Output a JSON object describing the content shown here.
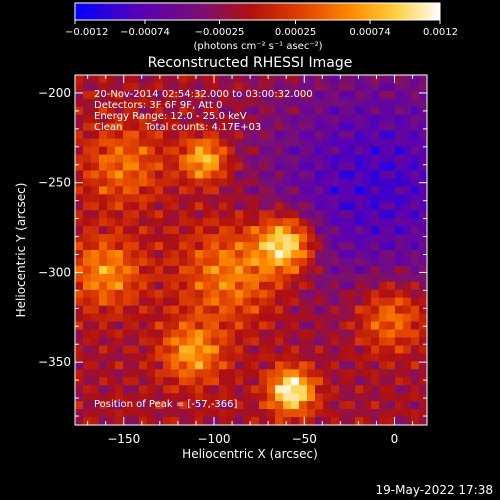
{
  "chart_data": {
    "type": "heatmap",
    "title": "Reconstructed RHESSI Image",
    "xlabel": "Heliocentric X (arcsec)",
    "ylabel": "Heliocentric Y (arcsec)",
    "xlim": [
      -177,
      18
    ],
    "ylim": [
      -385,
      -190
    ],
    "xticks": [
      -150,
      -100,
      -50,
      0
    ],
    "xtick_labels": [
      "−150",
      "−100",
      "−50",
      "0"
    ],
    "yticks": [
      -200,
      -250,
      -300,
      -350
    ],
    "ytick_labels": [
      "−200",
      "−250",
      "−300",
      "−350"
    ],
    "colorbar": {
      "range": [
        -0.0012,
        0.0012
      ],
      "ticks": [
        -0.0012,
        -0.00074,
        -0.00025,
        0.00025,
        0.00074,
        0.0012
      ],
      "tick_labels": [
        "−0.0012",
        "−0.00074",
        "−0.00025",
        "0.00025",
        "0.00074",
        "0.0012"
      ],
      "units": "(photons cm⁻² s⁻¹ asec⁻²)",
      "colors": [
        "#0000ff",
        "#5a00b4",
        "#7a1070",
        "#b01010",
        "#e04000",
        "#ff8c00",
        "#ffd040",
        "#ffffff"
      ]
    },
    "sources": [
      {
        "x": -57,
        "y": -366,
        "amp": 1.0,
        "sigma": 9
      },
      {
        "x": -60,
        "y": -284,
        "amp": 0.95,
        "sigma": 11
      },
      {
        "x": -105,
        "y": -237,
        "amp": 0.75,
        "sigma": 9
      },
      {
        "x": -112,
        "y": -345,
        "amp": 0.6,
        "sigma": 12
      },
      {
        "x": -2,
        "y": -325,
        "amp": 0.55,
        "sigma": 14
      },
      {
        "x": -160,
        "y": -300,
        "amp": 0.55,
        "sigma": 14
      },
      {
        "x": -150,
        "y": -240,
        "amp": 0.45,
        "sigma": 16
      },
      {
        "x": -90,
        "y": -300,
        "amp": 0.55,
        "sigma": 20
      }
    ],
    "negative_region": {
      "x": -10,
      "y": -250,
      "amp": -0.55,
      "sigma": 45
    }
  },
  "annotation": {
    "line1": "20-Nov-2014 02:54:32.000 to 03:00:32.000",
    "line2": "Detectors: 3F 6F 9F, Att 0",
    "line3": "Energy Range: 12.0 - 25.0 keV",
    "line4_a": "Clean",
    "line4_b": "Total counts: 4.17E+03",
    "peak": "Position of Peak = [-57,-366]"
  },
  "footer": {
    "timestamp": "19-May-2022 17:38"
  }
}
